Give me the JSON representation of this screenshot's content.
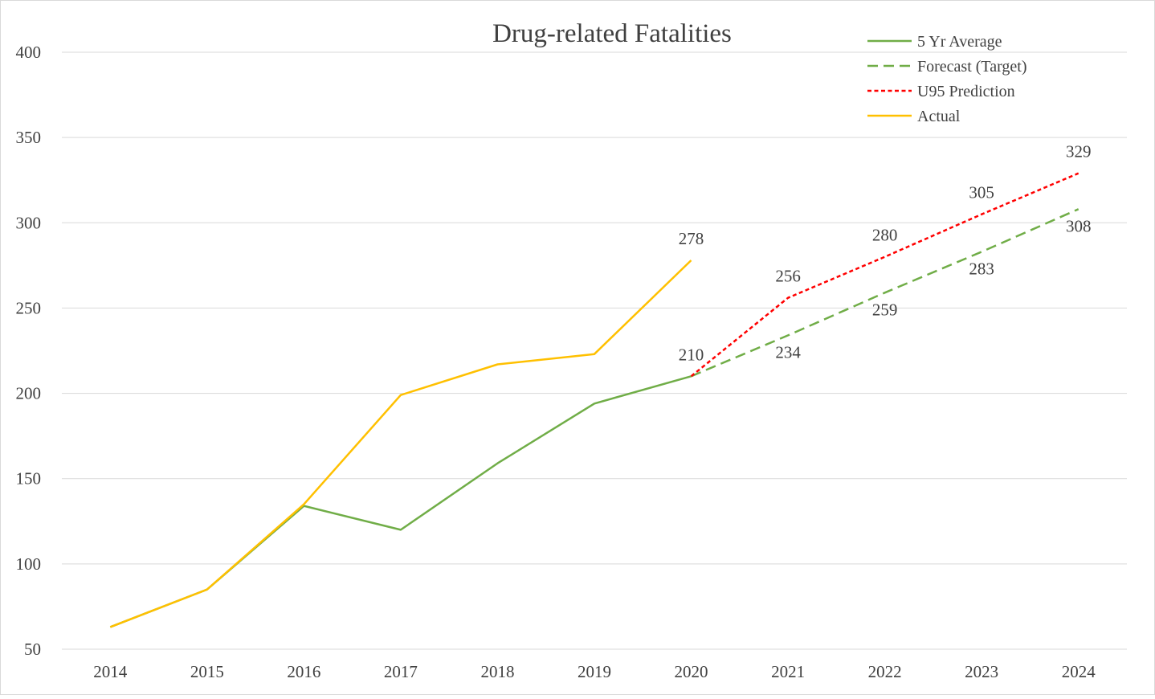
{
  "chart_data": {
    "type": "line",
    "title": "Drug-related Fatalities",
    "xlabel": "",
    "ylabel": "",
    "ylim": [
      50,
      400
    ],
    "yticks": [
      50,
      100,
      150,
      200,
      250,
      300,
      350,
      400
    ],
    "grid": true,
    "legend_position": "top-right",
    "categories": [
      "2014",
      "2015",
      "2016",
      "2017",
      "2018",
      "2019",
      "2020",
      "2021",
      "2022",
      "2023",
      "2024"
    ],
    "series": [
      {
        "name": "5 Yr Average",
        "color": "#70ad47",
        "style": "solid",
        "values": [
          63,
          85,
          134,
          120,
          159,
          194,
          210,
          null,
          null,
          null,
          null
        ],
        "data_labels": []
      },
      {
        "name": "Forecast (Target)",
        "color": "#70ad47",
        "style": "dashed",
        "values": [
          null,
          null,
          null,
          null,
          null,
          null,
          210,
          234,
          259,
          283,
          308
        ],
        "data_labels": [
          "2021",
          "2022",
          "2023",
          "2024"
        ]
      },
      {
        "name": "U95 Prediction",
        "color": "#ff0000",
        "style": "dotted",
        "values": [
          null,
          null,
          null,
          null,
          null,
          null,
          210,
          256,
          280,
          305,
          329
        ],
        "data_labels": [
          "2020",
          "2021",
          "2022",
          "2023",
          "2024"
        ]
      },
      {
        "name": "Actual",
        "color": "#ffc000",
        "style": "solid",
        "values": [
          63,
          85,
          135,
          199,
          217,
          223,
          278,
          null,
          null,
          null,
          null
        ],
        "data_labels": [
          "2020"
        ]
      }
    ]
  }
}
